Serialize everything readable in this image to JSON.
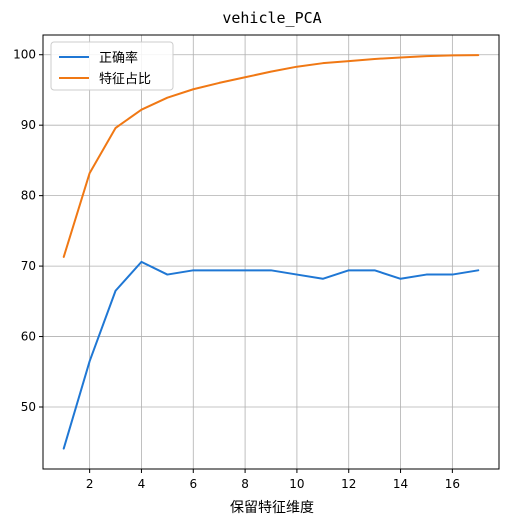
{
  "chart_data": {
    "type": "line",
    "title": "vehicle_PCA",
    "xlabel": "保留特征维度",
    "ylabel": "",
    "x": [
      1,
      2,
      3,
      4,
      5,
      6,
      7,
      8,
      9,
      10,
      11,
      12,
      13,
      14,
      15,
      16,
      17
    ],
    "xlim": [
      0.2,
      17.8
    ],
    "ylim": [
      41.2,
      102.8
    ],
    "xticks": [
      2,
      4,
      6,
      8,
      10,
      12,
      14,
      16
    ],
    "yticks": [
      50,
      60,
      70,
      80,
      90,
      100
    ],
    "grid": true,
    "legend_position": "top-left",
    "series": [
      {
        "name": "正确率",
        "color": "#1f77d4",
        "values": [
          44.1,
          56.5,
          66.5,
          70.6,
          68.8,
          69.4,
          69.4,
          69.4,
          69.4,
          68.8,
          68.2,
          69.4,
          69.4,
          68.2,
          68.8,
          68.8,
          69.4
        ]
      },
      {
        "name": "特征占比",
        "color": "#f07814",
        "values": [
          71.3,
          83.2,
          89.6,
          92.2,
          93.9,
          95.1,
          96.0,
          96.8,
          97.6,
          98.3,
          98.8,
          99.1,
          99.4,
          99.6,
          99.8,
          99.9,
          99.95
        ]
      }
    ]
  }
}
